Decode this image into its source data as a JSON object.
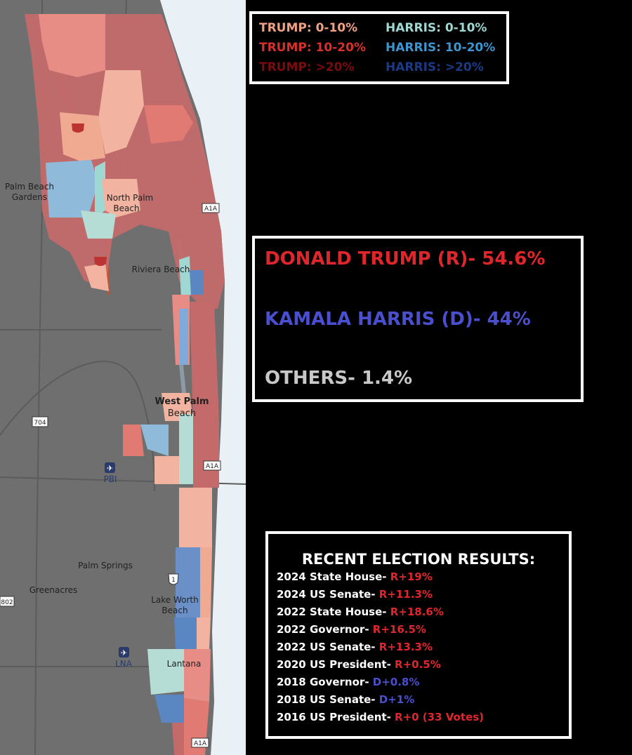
{
  "legend": {
    "items": [
      {
        "text": "TRUMP: 0-10%",
        "color": "#f0a184"
      },
      {
        "text": "HARRIS: 0-10%",
        "color": "#9fd7d2"
      },
      {
        "text": "TRUMP: 10-20%",
        "color": "#d8302b"
      },
      {
        "text": "HARRIS: 10-20%",
        "color": "#3d95d1"
      },
      {
        "text": "TRUMP: >20%",
        "color": "#7a0c0c"
      },
      {
        "text": "HARRIS: >20%",
        "color": "#1a3a86"
      }
    ]
  },
  "totals": {
    "trump": "DONALD TRUMP (R)- 54.6%",
    "harris": "KAMALA HARRIS (D)- 44%",
    "others": "OTHERS- 1.4%"
  },
  "history": {
    "header": "RECENT ELECTION RESULTS:",
    "rows": [
      {
        "race": "2024 State House-",
        "result": "R+19%",
        "party": "R"
      },
      {
        "race": "2024 US Senate-",
        "result": "R+11.3%",
        "party": "R"
      },
      {
        "race": "2022 State House-",
        "result": "R+18.6%",
        "party": "R"
      },
      {
        "race": "2022 Governor-",
        "result": "R+16.5%",
        "party": "R"
      },
      {
        "race": "2022 US Senate-",
        "result": "R+13.3%",
        "party": "R"
      },
      {
        "race": "2020 US President-",
        "result": "R+0.5%",
        "party": "R"
      },
      {
        "race": "2018 Governor-",
        "result": "D+0.8%",
        "party": "D"
      },
      {
        "race": "2018 US Senate-",
        "result": "D+1%",
        "party": "D"
      },
      {
        "race": "2016 US President-",
        "result": "R+0 (33 Votes)",
        "party": "R"
      }
    ]
  },
  "map": {
    "places": {
      "palm_beach_gardens_1": "Palm Beach",
      "palm_beach_gardens_2": "Gardens",
      "north_palm_1": "North Palm",
      "north_palm_2": "Beach",
      "riviera": "Riviera Beach",
      "west_palm_1": "West Palm",
      "west_palm_2": "Beach",
      "pbi": "PBI",
      "palm_springs": "Palm Springs",
      "greenacres": "Greenacres",
      "lake_worth_1": "Lake Worth",
      "lake_worth_2": "Beach",
      "lna": "LNA",
      "lantana": "Lantana"
    },
    "shields": {
      "a1a": "A1A",
      "sr704": "704",
      "sr802": "802",
      "us1": "1"
    }
  }
}
